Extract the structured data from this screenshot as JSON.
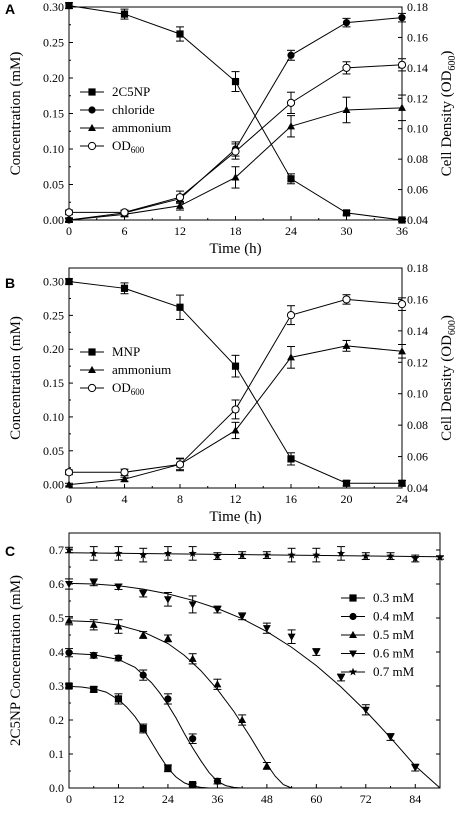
{
  "chart_data": [
    {
      "panel": "A",
      "type": "line",
      "title": "",
      "xlabel": "Time (h)",
      "ylabel": "Concentration (mM)",
      "y2label": "Cell Density (OD600)",
      "y2label_parts": {
        "main": "Cell Density (OD",
        "sub": "600",
        "end": ")"
      },
      "x": [
        0,
        6,
        12,
        18,
        24,
        30,
        36
      ],
      "xlim": [
        0,
        36
      ],
      "ylim": [
        0,
        0.3
      ],
      "y2lim": [
        0.04,
        0.18
      ],
      "xticks": [
        "0",
        "6",
        "12",
        "18",
        "24",
        "30",
        "36"
      ],
      "yticks": [
        "0.00",
        "0.05",
        "0.10",
        "0.15",
        "0.20",
        "0.25",
        "0.30"
      ],
      "y2ticks": [
        "0.04",
        "0.06",
        "0.08",
        "0.10",
        "0.12",
        "0.14",
        "0.16",
        "0.18"
      ],
      "legend_position": "center-left",
      "series": [
        {
          "name": "2C5NP",
          "marker": "square",
          "axis": "left",
          "values": [
            0.302,
            0.29,
            0.262,
            0.195,
            0.058,
            0.01,
            0.0
          ],
          "errors": [
            0.004,
            0.007,
            0.01,
            0.014,
            0.007,
            0.003,
            0.002
          ]
        },
        {
          "name": "chloride",
          "marker": "circle",
          "axis": "left",
          "values": [
            0.0,
            0.01,
            0.03,
            0.1,
            0.232,
            0.278,
            0.285
          ],
          "errors": [
            0.003,
            0.003,
            0.005,
            0.01,
            0.007,
            0.006,
            0.006
          ]
        },
        {
          "name": "ammonium",
          "marker": "triangle",
          "axis": "left",
          "values": [
            0.0,
            0.008,
            0.02,
            0.06,
            0.132,
            0.155,
            0.158
          ],
          "errors": [
            0.002,
            0.003,
            0.006,
            0.015,
            0.015,
            0.018,
            0.018
          ]
        },
        {
          "name": "OD600",
          "name_parts": {
            "main": "OD",
            "sub": "600"
          },
          "marker": "open-circle",
          "axis": "right",
          "values": [
            0.045,
            0.045,
            0.055,
            0.085,
            0.117,
            0.14,
            0.142
          ],
          "errors": [
            0.0015,
            0.0015,
            0.004,
            0.005,
            0.007,
            0.004,
            0.004
          ]
        }
      ]
    },
    {
      "panel": "B",
      "type": "line",
      "title": "",
      "xlabel": "Time (h)",
      "ylabel": "Concentration (mM)",
      "y2label": "Cell Density (OD600)",
      "y2label_parts": {
        "main": "Cell Density (OD",
        "sub": "600",
        "end": ")"
      },
      "x": [
        0,
        4,
        8,
        12,
        16,
        20,
        24
      ],
      "xlim": [
        0,
        24
      ],
      "ylim": [
        -0.005,
        0.32
      ],
      "y2lim": [
        0.04,
        0.18
      ],
      "xticks": [
        "0",
        "4",
        "8",
        "12",
        "16",
        "20",
        "24"
      ],
      "yticks": [
        "0.00",
        "0.05",
        "0.10",
        "0.15",
        "0.20",
        "0.25",
        "0.30"
      ],
      "y2ticks": [
        "0.04",
        "0.06",
        "0.08",
        "0.10",
        "0.12",
        "0.14",
        "0.16",
        "0.18"
      ],
      "legend_position": "center-left",
      "series": [
        {
          "name": "MNP",
          "marker": "square",
          "axis": "left",
          "values": [
            0.3,
            0.29,
            0.262,
            0.175,
            0.038,
            0.002,
            0.002
          ],
          "errors": [
            0.004,
            0.008,
            0.018,
            0.016,
            0.009,
            0.004,
            0.004
          ]
        },
        {
          "name": "ammonium",
          "marker": "triangle",
          "axis": "left",
          "values": [
            0.0,
            0.008,
            0.03,
            0.08,
            0.188,
            0.205,
            0.197
          ],
          "errors": [
            0.002,
            0.003,
            0.008,
            0.012,
            0.016,
            0.008,
            0.01
          ]
        },
        {
          "name": "OD600",
          "name_parts": {
            "main": "OD",
            "sub": "600"
          },
          "marker": "open-circle",
          "axis": "right",
          "values": [
            0.05,
            0.05,
            0.055,
            0.09,
            0.15,
            0.16,
            0.157
          ],
          "errors": [
            0.0015,
            0.002,
            0.004,
            0.006,
            0.006,
            0.003,
            0.004
          ]
        }
      ]
    },
    {
      "panel": "C",
      "type": "line",
      "title": "",
      "xlabel": "Time (h)",
      "ylabel": "2C5NP Concentration (mM)",
      "x": [
        0,
        6,
        12,
        18,
        24,
        30,
        36,
        42,
        48,
        54,
        60,
        66,
        72,
        78,
        84,
        90
      ],
      "xlim": [
        0,
        90
      ],
      "ylim": [
        0,
        0.75
      ],
      "xticks": [
        "0",
        "12",
        "24",
        "36",
        "48",
        "60",
        "72",
        "84"
      ],
      "xtick_values": [
        0,
        12,
        24,
        36,
        48,
        60,
        72,
        84
      ],
      "yticks": [
        "0.0",
        "0.1",
        "0.2",
        "0.3",
        "0.4",
        "0.5",
        "0.6",
        "0.7"
      ],
      "legend_position": "right",
      "series": [
        {
          "name": "0.3 mM",
          "marker": "square",
          "x": [
            0,
            6,
            12,
            18,
            24,
            30
          ],
          "values": [
            0.3,
            0.29,
            0.262,
            0.175,
            0.058,
            0.01
          ],
          "errors": [
            0.006,
            0.008,
            0.015,
            0.013,
            0.01,
            0.004
          ],
          "fit_x": [
            0,
            3,
            6,
            9,
            12,
            14,
            16,
            18,
            20,
            22,
            24,
            26,
            28,
            30,
            32,
            34
          ],
          "fit_y": [
            0.299,
            0.297,
            0.292,
            0.282,
            0.26,
            0.238,
            0.21,
            0.175,
            0.135,
            0.095,
            0.058,
            0.032,
            0.015,
            0.006,
            0.002,
            0.0
          ]
        },
        {
          "name": "0.4 mM",
          "marker": "circle",
          "x": [
            0,
            6,
            12,
            18,
            24,
            30,
            36
          ],
          "values": [
            0.398,
            0.39,
            0.382,
            0.332,
            0.262,
            0.145,
            0.02
          ],
          "errors": [
            0.012,
            0.008,
            0.008,
            0.015,
            0.015,
            0.014,
            0.008
          ],
          "fit_x": [
            0,
            6,
            12,
            16,
            20,
            22,
            24,
            26,
            28,
            30,
            32,
            34,
            36,
            38,
            40,
            42
          ],
          "fit_y": [
            0.396,
            0.392,
            0.378,
            0.355,
            0.31,
            0.28,
            0.245,
            0.205,
            0.16,
            0.118,
            0.08,
            0.045,
            0.02,
            0.007,
            0.002,
            0.0
          ]
        },
        {
          "name": "0.5 mM",
          "marker": "triangle",
          "x": [
            0,
            6,
            12,
            18,
            24,
            30,
            36,
            42,
            48
          ],
          "values": [
            0.492,
            0.48,
            0.475,
            0.45,
            0.44,
            0.38,
            0.305,
            0.2,
            0.065
          ],
          "errors": [
            0.012,
            0.015,
            0.02,
            0.01,
            0.01,
            0.015,
            0.015,
            0.015,
            0.01
          ],
          "fit_x": [
            0,
            6,
            12,
            18,
            24,
            28,
            32,
            36,
            40,
            44,
            46,
            48,
            50,
            52,
            54
          ],
          "fit_y": [
            0.492,
            0.489,
            0.479,
            0.459,
            0.425,
            0.39,
            0.345,
            0.29,
            0.225,
            0.15,
            0.11,
            0.07,
            0.035,
            0.01,
            0.0
          ]
        },
        {
          "name": "0.6 mM",
          "marker": "inverted-triangle",
          "x": [
            0,
            6,
            12,
            18,
            24,
            30,
            36,
            42,
            48,
            54,
            60,
            66,
            72,
            78,
            84
          ],
          "values": [
            0.6,
            0.605,
            0.592,
            0.572,
            0.555,
            0.54,
            0.525,
            0.505,
            0.47,
            0.445,
            0.4,
            0.325,
            0.23,
            0.15,
            0.06
          ],
          "errors": [
            0.015,
            0.01,
            0.008,
            0.01,
            0.02,
            0.025,
            0.01,
            0.01,
            0.015,
            0.02,
            0.01,
            0.01,
            0.015,
            0.01,
            0.01
          ],
          "fit_x": [
            0,
            6,
            12,
            18,
            24,
            30,
            36,
            42,
            48,
            54,
            60,
            66,
            72,
            78,
            84,
            90
          ],
          "fit_y": [
            0.602,
            0.6,
            0.595,
            0.585,
            0.571,
            0.552,
            0.528,
            0.498,
            0.46,
            0.414,
            0.36,
            0.297,
            0.226,
            0.148,
            0.065,
            0.0
          ]
        },
        {
          "name": "0.7 mM",
          "marker": "star",
          "x": [
            0,
            6,
            12,
            18,
            24,
            30,
            36,
            42,
            48,
            54,
            60,
            66,
            72,
            78,
            84,
            90
          ],
          "values": [
            0.7,
            0.69,
            0.69,
            0.685,
            0.69,
            0.69,
            0.682,
            0.685,
            0.685,
            0.685,
            0.685,
            0.69,
            0.682,
            0.682,
            0.675,
            0.678
          ],
          "errors": [
            0.008,
            0.02,
            0.02,
            0.02,
            0.02,
            0.02,
            0.01,
            0.01,
            0.01,
            0.02,
            0.02,
            0.02,
            0.01,
            0.01,
            0.01,
            0.005
          ],
          "fit_x": [
            0,
            90
          ],
          "fit_y": [
            0.692,
            0.68
          ]
        }
      ]
    }
  ]
}
